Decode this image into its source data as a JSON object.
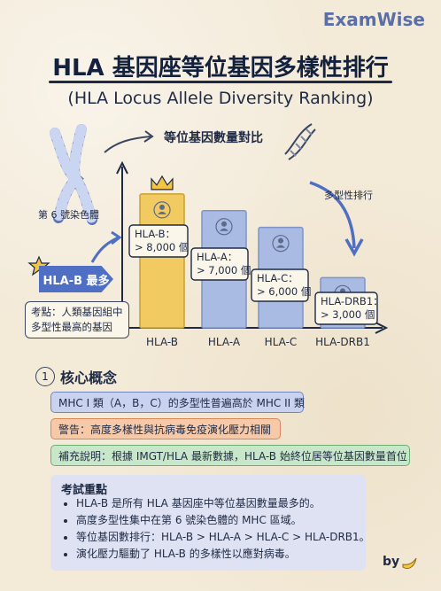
{
  "brand": "ExamWise",
  "title": "HLA 基因座等位基因多樣性排行",
  "subtitle": "(HLA Locus Allele Diversity Ranking)",
  "chromosome_label": "第 6 號染色體",
  "badge_most": "HLA-B 最多",
  "exam_note_line1": "考點：人類基因組中",
  "exam_note_line2": "多型性最高的基因",
  "colors": {
    "gold": "#f1cb61",
    "blue": "#a9bbe3",
    "accent": "#4f6fc4"
  },
  "chart_data": {
    "type": "bar",
    "title": "等位基因數量對比",
    "trend_label": "多型性排行",
    "categories": [
      "HLA-B",
      "HLA-A",
      "HLA-C",
      "HLA-DRB1"
    ],
    "values": [
      8000,
      7000,
      6000,
      3000
    ],
    "value_labels": [
      [
        "HLA-B：",
        "> 8,000 個"
      ],
      [
        "HLA-A：",
        "> 7,000 個"
      ],
      [
        "HLA-C：",
        "> 6,000 個"
      ],
      [
        "HLA-DRB1：",
        "> 3,000 個"
      ]
    ],
    "highlight": "HLA-B",
    "ylim": [
      0,
      9000
    ]
  },
  "concepts": {
    "number": "1",
    "title": "核心概念",
    "items": [
      "MHC I 類（A，B，C）的多型性普遍高於 MHC II 類",
      "警告：高度多樣性與抗病毒免疫演化壓力相關",
      "補充說明：根據 IMGT/HLA 最新數據，HLA-B 始終位居等位基因數量首位"
    ]
  },
  "summary": {
    "title": "考試重點",
    "points": [
      "HLA-B 是所有 HLA 基因座中等位基因數量最多的。",
      "高度多型性集中在第 6 號染色體的 MHC 區域。",
      "等位基因數排行：HLA-B > HLA-A > HLA-C > HLA-DRB1。",
      "演化壓力驅動了 HLA-B 的多樣性以應對病毒。"
    ]
  },
  "footer_by": "by"
}
